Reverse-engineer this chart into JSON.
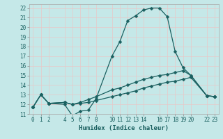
{
  "xlabel": "Humidex (Indice chaleur)",
  "bg_color": "#c5e8e8",
  "line_color": "#1a6060",
  "grid_color": "#e8c8c8",
  "ylim": [
    11,
    22.4
  ],
  "xlim": [
    -0.5,
    23.5
  ],
  "yticks": [
    11,
    12,
    13,
    14,
    15,
    16,
    17,
    18,
    19,
    20,
    21,
    22
  ],
  "xtick_positions": [
    0,
    1,
    2,
    4,
    5,
    6,
    7,
    8,
    10,
    11,
    12,
    13,
    14,
    16,
    17,
    18,
    19,
    20,
    22,
    23
  ],
  "xtick_labels": [
    "0",
    "1",
    "2",
    "4",
    "5",
    "6",
    "7",
    "8",
    "10",
    "11",
    "12",
    "13",
    "14",
    "16",
    "17",
    "18",
    "19",
    "20",
    "22",
    "23"
  ],
  "line1_x": [
    0,
    1,
    2,
    4,
    5,
    6,
    7,
    8,
    10,
    11,
    12,
    13,
    14,
    15,
    16,
    17,
    18,
    19,
    20,
    22,
    23
  ],
  "line1_y": [
    11.7,
    13.0,
    12.1,
    12.0,
    10.8,
    11.3,
    11.4,
    12.6,
    17.0,
    18.5,
    20.7,
    21.2,
    21.8,
    22.0,
    22.0,
    21.1,
    17.5,
    15.8,
    15.0,
    12.9,
    12.8
  ],
  "line2_x": [
    0,
    1,
    2,
    4,
    5,
    6,
    7,
    8,
    10,
    11,
    12,
    13,
    14,
    15,
    16,
    17,
    18,
    19,
    20,
    22,
    23
  ],
  "line2_y": [
    11.7,
    13.0,
    12.1,
    12.2,
    12.0,
    12.2,
    12.5,
    12.8,
    13.5,
    13.7,
    14.0,
    14.3,
    14.6,
    14.8,
    15.0,
    15.1,
    15.3,
    15.5,
    15.0,
    12.9,
    12.8
  ],
  "line3_x": [
    0,
    1,
    2,
    4,
    5,
    6,
    7,
    8,
    10,
    11,
    12,
    13,
    14,
    15,
    16,
    17,
    18,
    19,
    20,
    22,
    23
  ],
  "line3_y": [
    11.7,
    13.0,
    12.1,
    12.2,
    12.0,
    12.1,
    12.2,
    12.4,
    12.8,
    13.0,
    13.2,
    13.4,
    13.7,
    13.9,
    14.1,
    14.3,
    14.4,
    14.6,
    14.8,
    12.9,
    12.8
  ],
  "markersize": 2.5,
  "linewidth": 0.9,
  "tick_fontsize": 5.5,
  "xlabel_fontsize": 6.5
}
